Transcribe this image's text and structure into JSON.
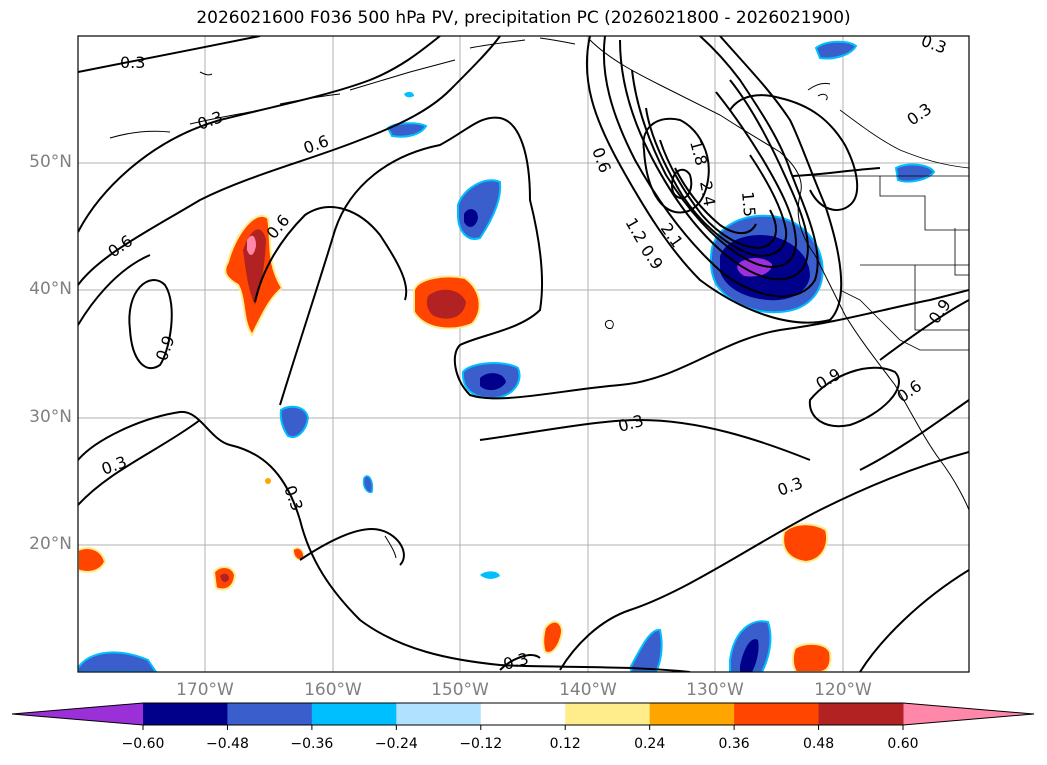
{
  "title": "2026021600 F036 500 hPa PV, precipitation PC (2026021800 - 2026021900)",
  "lat_labels": [
    "50°N",
    "40°N",
    "30°N",
    "20°N"
  ],
  "lon_labels": [
    "170°W",
    "160°W",
    "150°W",
    "140°W",
    "130°W",
    "120°W"
  ],
  "colorbar": {
    "ticks": [
      "−0.60",
      "−0.48",
      "−0.36",
      "−0.24",
      "−0.12",
      "0.12",
      "0.24",
      "0.36",
      "0.48",
      "0.60"
    ],
    "colors": [
      "#9b30d9",
      "#00008b",
      "#3a5fcd",
      "#00bfff",
      "#b0e2ff",
      "#ffffff",
      "#ffec8b",
      "#ffa500",
      "#ff4500",
      "#b22222",
      "#ff88aa"
    ]
  },
  "contour_labels": {
    "l1": "0.3",
    "l2": "0.3",
    "l3": "0.6",
    "l4": "0.6",
    "l5": "0.6",
    "l6": "0.9",
    "l7": "0.3",
    "l8": "0.3",
    "l9": "0.3",
    "l10": "0.3",
    "l11": "0.3",
    "l12": "0.6",
    "l13": "1.2",
    "l14": "0.9",
    "l15": "2.1",
    "l16": "2.4",
    "l17": "1.8",
    "l18": "1.5",
    "l19": "0.3",
    "l20": "0.9",
    "l21": "0.9",
    "l22": "0.6",
    "l23": "0.3"
  }
}
